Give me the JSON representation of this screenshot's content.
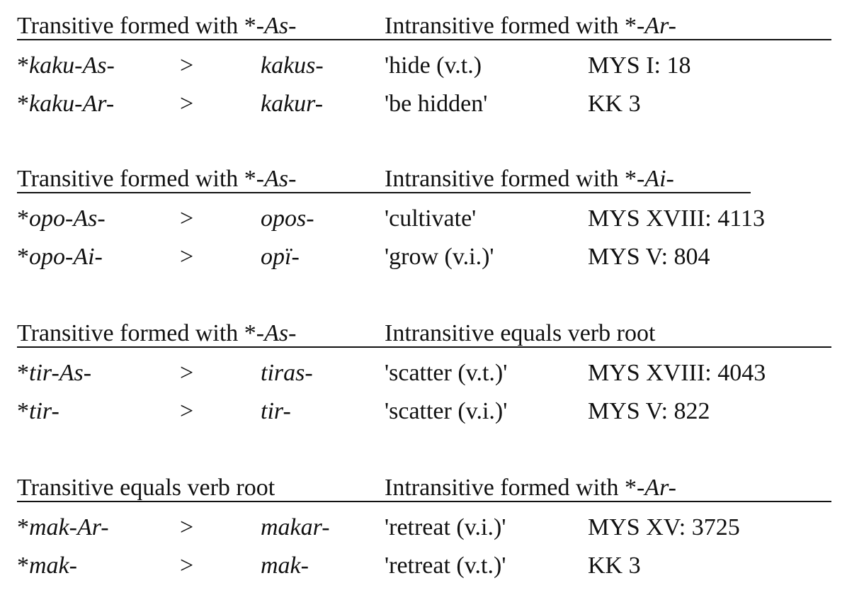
{
  "sections": [
    {
      "header_left": {
        "prefix": "Transitive formed with *",
        "affix": "-As-"
      },
      "header_right": {
        "prefix": "Intransitive formed with *",
        "affix": "-Ar-"
      },
      "rows": [
        {
          "form": "kaku-As-",
          "arrow": ">",
          "result": "kakus-",
          "gloss": "'hide (v.t.)",
          "source": "MYS I: 18"
        },
        {
          "form": "kaku-Ar-",
          "arrow": ">",
          "result": "kakur-",
          "gloss": "'be hidden'",
          "source": "KK 3"
        }
      ]
    },
    {
      "header_left": {
        "prefix": "Transitive formed with *",
        "affix": "-As-"
      },
      "header_right": {
        "prefix": "Intransitive formed with *",
        "affix": "-Ai-"
      },
      "rows": [
        {
          "form": "opo-As-",
          "arrow": ">",
          "result": "opos-",
          "gloss": "'cultivate'",
          "source": "MYS XVIII: 4113"
        },
        {
          "form": "opo-Ai-",
          "arrow": ">",
          "result": "opï-",
          "gloss": "'grow (v.i.)'",
          "source": "MYS V: 804"
        }
      ]
    },
    {
      "header_left": {
        "prefix": "Transitive formed with *",
        "affix": "-As-"
      },
      "header_right": {
        "prefix": "Intransitive equals verb root",
        "affix": ""
      },
      "rows": [
        {
          "form": "tir-As-",
          "arrow": ">",
          "result": "tiras-",
          "gloss": "'scatter (v.t.)'",
          "source": "MYS XVIII: 4043"
        },
        {
          "form": "tir-",
          "arrow": ">",
          "result": "tir-",
          "gloss": "'scatter (v.i.)'",
          "source": "MYS V: 822"
        }
      ]
    },
    {
      "header_left": {
        "prefix": "Transitive equals verb root",
        "affix": ""
      },
      "header_right": {
        "prefix": "Intransitive formed with *",
        "affix": "-Ar-"
      },
      "rows": [
        {
          "form": "mak-Ar-",
          "arrow": ">",
          "result": "makar-",
          "gloss": "'retreat (v.i.)'",
          "source": "MYS XV: 3725"
        },
        {
          "form": "mak-",
          "arrow": ">",
          "result": "mak-",
          "gloss": "'retreat (v.t.)'",
          "source": "KK 3"
        }
      ]
    }
  ],
  "star": "*"
}
